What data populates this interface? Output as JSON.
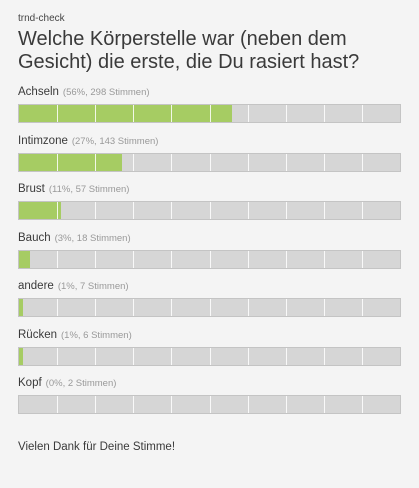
{
  "widget": {
    "source": "trnd-check",
    "question": "Welche Körperstelle war (neben dem Gesicht) die erste, die Du rasiert hast?",
    "thanks": "Vielen Dank für Deine Stimme!",
    "colors": {
      "bar_fill": "#a6cc63",
      "bar_track": "#d6d6d6",
      "background": "#f4f4f4"
    }
  },
  "options": [
    {
      "label": "Achseln",
      "stats": "(56%, 298 Stimmen)",
      "percent": 56,
      "votes": 298
    },
    {
      "label": "Intimzone",
      "stats": "(27%, 143 Stimmen)",
      "percent": 27,
      "votes": 143
    },
    {
      "label": "Brust",
      "stats": "(11%, 57 Stimmen)",
      "percent": 11,
      "votes": 57
    },
    {
      "label": "Bauch",
      "stats": "(3%, 18 Stimmen)",
      "percent": 3,
      "votes": 18
    },
    {
      "label": "andere",
      "stats": "(1%, 7 Stimmen)",
      "percent": 1,
      "votes": 7
    },
    {
      "label": "Rücken",
      "stats": "(1%, 6 Stimmen)",
      "percent": 1,
      "votes": 6
    },
    {
      "label": "Kopf",
      "stats": "(0%, 2 Stimmen)",
      "percent": 0,
      "votes": 2
    }
  ]
}
